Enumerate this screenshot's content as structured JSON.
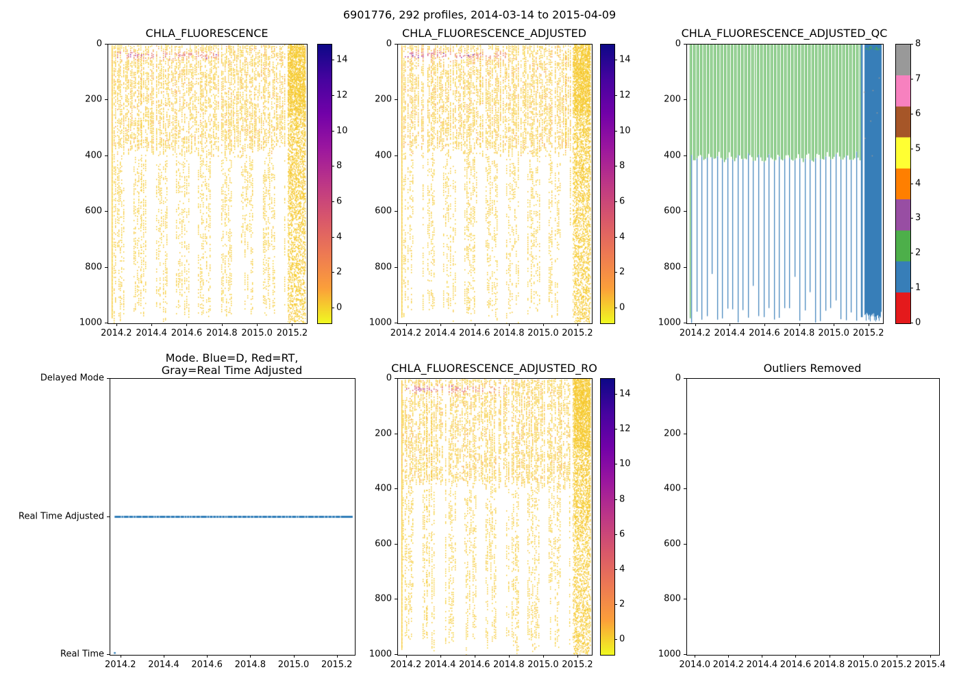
{
  "figure": {
    "title": "6901776, 292 profiles, 2014-03-14 to 2015-04-09"
  },
  "palette": {
    "background": "#ffffff",
    "text": "#000000",
    "spine": "#000000",
    "plasma": [
      "#0d0887",
      "#46039f",
      "#7201a8",
      "#9c179e",
      "#bd3786",
      "#d8576b",
      "#ed7953",
      "#fb9f3a",
      "#f0f921"
    ],
    "qc_flag_colors": [
      "#e41a1c",
      "#377eb8",
      "#4daf4a",
      "#984ea3",
      "#ff7f00",
      "#ffff33",
      "#a65628",
      "#f781bf",
      "#999999"
    ],
    "mode_line": "#2e7cb8"
  },
  "chart_data": [
    {
      "id": "chla_fluorescence",
      "type": "scatter",
      "title": "CHLA_FLUORESCENCE",
      "x_tick_values": [
        2014.2,
        2014.4,
        2014.6,
        2014.8,
        2015.0,
        2015.2
      ],
      "x_tick_labels": [
        "2014.2",
        "2014.4",
        "2014.6",
        "2014.8",
        "2015.0",
        "2015.2"
      ],
      "x_range": [
        2014.15,
        2015.28
      ],
      "y_tick_values": [
        0,
        200,
        400,
        600,
        800,
        1000
      ],
      "y_tick_labels": [
        "0",
        "200",
        "400",
        "600",
        "800",
        "1000"
      ],
      "y_range": [
        0,
        1000
      ],
      "y_inverted": true,
      "colorbar": {
        "colormap": "plasma_r",
        "tick_values": [
          0,
          2,
          4,
          6,
          8,
          10,
          12,
          14
        ],
        "tick_labels": [
          "0",
          "2",
          "4",
          "6",
          "8",
          "10",
          "12",
          "14"
        ],
        "range": [
          -0.85,
          14.9
        ]
      },
      "data_summary": {
        "n_profiles": 292,
        "time_start": 2014.17,
        "time_end": 2015.27,
        "depth_range_m": [
          0,
          1000
        ],
        "typical_value": 0.2,
        "shallow_dense_depth_m": 380,
        "surface_bloom": {
          "time": [
            2014.19,
            2014.78
          ],
          "depth_m": [
            18,
            62
          ],
          "values": [
            2,
            14
          ]
        },
        "dense_sampling_block": {
          "time": [
            2015.17,
            2015.27
          ]
        }
      },
      "seed": 11
    },
    {
      "id": "chla_fluorescence_adjusted",
      "type": "scatter",
      "title": "CHLA_FLUORESCENCE_ADJUSTED",
      "x_tick_values": [
        2014.2,
        2014.4,
        2014.6,
        2014.8,
        2015.0,
        2015.2
      ],
      "x_tick_labels": [
        "2014.2",
        "2014.4",
        "2014.6",
        "2014.8",
        "2015.0",
        "2015.2"
      ],
      "x_range": [
        2014.15,
        2015.28
      ],
      "y_tick_values": [
        0,
        200,
        400,
        600,
        800,
        1000
      ],
      "y_tick_labels": [
        "0",
        "200",
        "400",
        "600",
        "800",
        "1000"
      ],
      "y_range": [
        0,
        1000
      ],
      "y_inverted": true,
      "colorbar": {
        "colormap": "plasma_r",
        "tick_values": [
          0,
          2,
          4,
          6,
          8,
          10,
          12,
          14
        ],
        "tick_labels": [
          "0",
          "2",
          "4",
          "6",
          "8",
          "10",
          "12",
          "14"
        ],
        "range": [
          -0.85,
          14.9
        ]
      },
      "data_summary": {
        "n_profiles": 292,
        "time_start": 2014.17,
        "time_end": 2015.27,
        "depth_range_m": [
          0,
          1000
        ],
        "typical_value": 0.2,
        "shallow_dense_depth_m": 380,
        "surface_bloom": {
          "time": [
            2014.19,
            2014.78
          ],
          "depth_m": [
            18,
            62
          ],
          "values": [
            2,
            14
          ]
        },
        "dense_sampling_block": {
          "time": [
            2015.17,
            2015.27
          ]
        }
      },
      "seed": 23
    },
    {
      "id": "chla_fluorescence_adjusted_qc",
      "type": "qc-scatter",
      "title": "CHLA_FLUORESCENCE_ADJUSTED_QC",
      "x_tick_values": [
        2014.2,
        2014.4,
        2014.6,
        2014.8,
        2015.0,
        2015.2
      ],
      "x_tick_labels": [
        "2014.2",
        "2014.4",
        "2014.6",
        "2014.8",
        "2015.0",
        "2015.2"
      ],
      "x_range": [
        2014.15,
        2015.28
      ],
      "y_tick_values": [
        0,
        200,
        400,
        600,
        800,
        1000
      ],
      "y_tick_labels": [
        "0",
        "200",
        "400",
        "600",
        "800",
        "1000"
      ],
      "y_range": [
        0,
        1000
      ],
      "y_inverted": true,
      "colorbar": {
        "colormap": "qc_flags",
        "tick_values": [
          0,
          1,
          2,
          3,
          4,
          5,
          6,
          7,
          8
        ],
        "tick_labels": [
          "0",
          "1",
          "2",
          "3",
          "4",
          "5",
          "6",
          "7",
          "8"
        ],
        "range": [
          0,
          8
        ]
      },
      "data_summary": {
        "qc2_probably_good_green": {
          "flag": 2,
          "depth_m": [
            0,
            400
          ],
          "time": [
            2014.17,
            2015.15
          ]
        },
        "qc1_good_deep_blue": {
          "flag": 1,
          "depth_m": [
            380,
            1000
          ],
          "time": [
            2014.17,
            2015.15
          ]
        },
        "qc1_good_block_blue": {
          "flag": 1,
          "depth_m": [
            0,
            1000
          ],
          "time": [
            2015.17,
            2015.27
          ]
        },
        "qc8_gray_specks": {
          "flag": 8,
          "count_approx": 7,
          "time": [
            2015.16,
            2015.27
          ]
        }
      },
      "seed": 7
    },
    {
      "id": "mode",
      "type": "line",
      "title_lines": [
        "Mode. Blue=D, Red=RT,",
        "Gray=Real Time Adjusted"
      ],
      "x_tick_values": [
        2014.2,
        2014.4,
        2014.6,
        2014.8,
        2015.0,
        2015.2
      ],
      "x_tick_labels": [
        "2014.2",
        "2014.4",
        "2014.6",
        "2014.8",
        "2015.0",
        "2015.2"
      ],
      "x_range": [
        2014.15,
        2015.28
      ],
      "y_categories": [
        "Delayed Mode",
        "Real Time Adjusted",
        "Real Time"
      ],
      "series": [
        {
          "name": "profiles-mode",
          "mode": "Real Time Adjusted",
          "time_range": [
            2014.17,
            2015.27
          ],
          "marker_color": "#2e7cb8"
        },
        {
          "name": "first-profile-mode",
          "mode": "Real Time",
          "time": 2014.17,
          "marker_color": "#2e7cb8"
        }
      ],
      "seed": 77
    },
    {
      "id": "chla_fluorescence_adjusted_ro",
      "type": "scatter",
      "title": "CHLA_FLUORESCENCE_ADJUSTED_RO",
      "x_tick_values": [
        2014.2,
        2014.4,
        2014.6,
        2014.8,
        2015.0,
        2015.2
      ],
      "x_tick_labels": [
        "2014.2",
        "2014.4",
        "2014.6",
        "2014.8",
        "2015.0",
        "2015.2"
      ],
      "x_range": [
        2014.15,
        2015.28
      ],
      "y_tick_values": [
        0,
        200,
        400,
        600,
        800,
        1000
      ],
      "y_tick_labels": [
        "0",
        "200",
        "400",
        "600",
        "800",
        "1000"
      ],
      "y_range": [
        0,
        1000
      ],
      "y_inverted": true,
      "colorbar": {
        "colormap": "plasma_r",
        "tick_values": [
          0,
          2,
          4,
          6,
          8,
          10,
          12,
          14
        ],
        "tick_labels": [
          "0",
          "2",
          "4",
          "6",
          "8",
          "10",
          "12",
          "14"
        ],
        "range": [
          -0.85,
          14.9
        ]
      },
      "data_summary": {
        "n_profiles": 292,
        "time_start": 2014.17,
        "time_end": 2015.27,
        "depth_range_m": [
          0,
          1000
        ],
        "typical_value": 0.2,
        "shallow_dense_depth_m": 380,
        "surface_bloom": {
          "time": [
            2014.19,
            2014.78
          ],
          "depth_m": [
            18,
            62
          ],
          "values": [
            2,
            14
          ]
        },
        "dense_sampling_block": {
          "time": [
            2015.17,
            2015.27
          ]
        }
      },
      "seed": 31
    },
    {
      "id": "outliers_removed",
      "type": "empty",
      "title": "Outliers Removed",
      "x_tick_values": [
        2014.0,
        2014.2,
        2014.4,
        2014.6,
        2014.8,
        2015.0,
        2015.2,
        2015.4
      ],
      "x_tick_labels": [
        "2014.0",
        "2014.2",
        "2014.4",
        "2014.6",
        "2014.8",
        "2015.0",
        "2015.2",
        "2015.4"
      ],
      "x_range": [
        2013.95,
        2015.45
      ],
      "y_tick_values": [
        0,
        200,
        400,
        600,
        800,
        1000
      ],
      "y_tick_labels": [
        "0",
        "200",
        "400",
        "600",
        "800",
        "1000"
      ],
      "y_range": [
        0,
        1000
      ],
      "y_inverted": true,
      "data_summary": {
        "points": []
      }
    }
  ]
}
